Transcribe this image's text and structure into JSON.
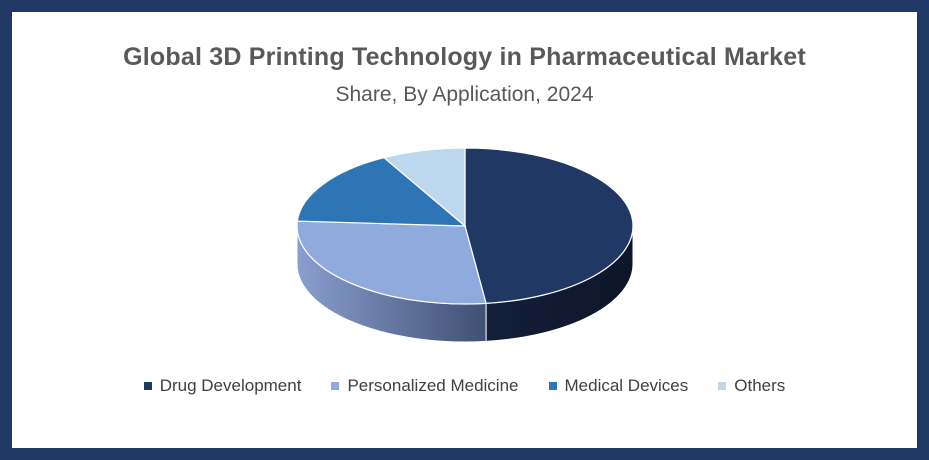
{
  "chart_data": {
    "type": "pie",
    "title": "Global 3D Printing Technology in Pharmaceutical Market",
    "subtitle": "Share, By Application, 2024",
    "categories": [
      "Drug Development",
      "Personalized Medicine",
      "Medical Devices",
      "Others"
    ],
    "values": [
      48,
      28,
      16,
      8
    ],
    "colors": [
      "#1f3864",
      "#8faadc",
      "#2e75b6",
      "#bdd7ee"
    ],
    "legend": "bottom",
    "style": "3d"
  }
}
